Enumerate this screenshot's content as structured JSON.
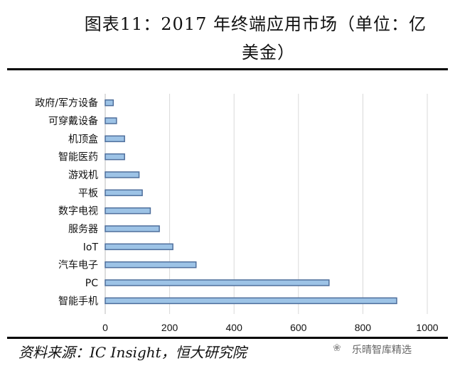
{
  "title_line1": "图表11：2017 年终端应用市场（单位：亿",
  "title_line2": "美金）",
  "source": "资料来源：IC Insight，恒大研究院",
  "watermark": "乐晴智库精选",
  "chart_data": {
    "type": "bar",
    "orientation": "horizontal",
    "title": "图表11：2017 年终端应用市场（单位：亿美金）",
    "categories": [
      "政府/军方设备",
      "可穿戴设备",
      "机顶盒",
      "智能医药",
      "游戏机",
      "平板",
      "数字电视",
      "服务器",
      "IoT",
      "汽车电子",
      "PC",
      "智能手机"
    ],
    "values": [
      25,
      35,
      60,
      60,
      105,
      115,
      140,
      168,
      210,
      282,
      695,
      905
    ],
    "xlim": [
      0,
      1000
    ],
    "xticks": [
      0,
      200,
      400,
      600,
      800,
      1000
    ],
    "grid": true,
    "bar_color": "#9dc3e6",
    "bar_edge_color": "#4f6f9c"
  }
}
